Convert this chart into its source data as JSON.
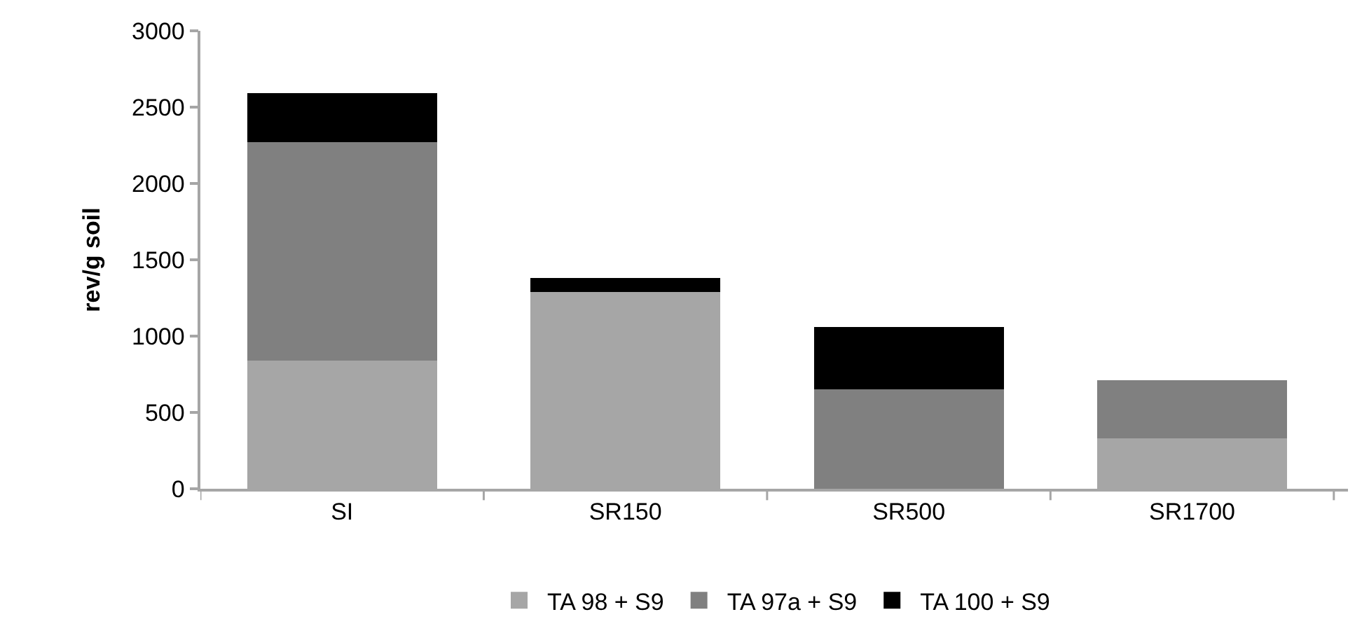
{
  "chart_data": {
    "type": "bar",
    "stacked": true,
    "ylabel": "rev/g soil",
    "categories": [
      "SI",
      "SR150",
      "SR500",
      "SR1700"
    ],
    "series": [
      {
        "name": "TA 98 + S9",
        "color": "#a6a6a6",
        "values": [
          840,
          1290,
          null,
          330
        ]
      },
      {
        "name": "TA 97a + S9",
        "color": "#808080",
        "values": [
          1430,
          null,
          650,
          380
        ]
      },
      {
        "name": "TA 100 + S9",
        "color": "#000000",
        "values": [
          320,
          90,
          410,
          null
        ]
      }
    ],
    "ylim": [
      0,
      3000
    ],
    "yticks": [
      0,
      500,
      1000,
      1500,
      2000,
      2500,
      3000
    ],
    "grid": false,
    "legend": "bottom"
  }
}
